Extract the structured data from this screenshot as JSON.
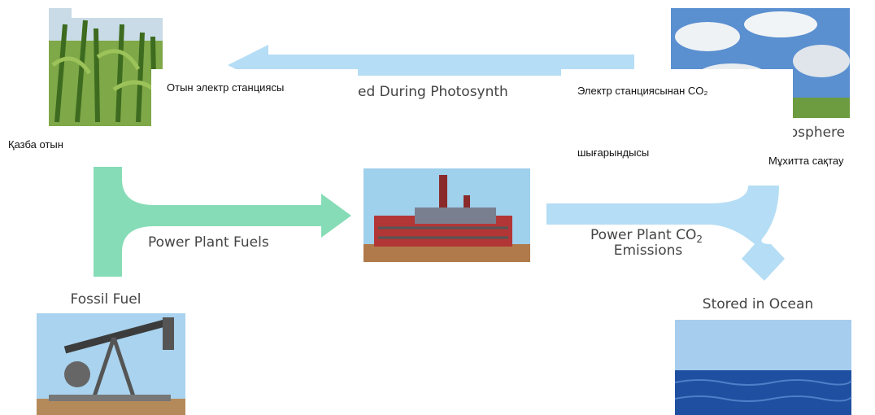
{
  "translations": {
    "power_plant_fuel": "Отын электр станциясы",
    "power_plant_emissions": "Электр станциясынан CO₂",
    "emissions_line2": "шығарындысы",
    "fossil_fuel": "Қазба отын",
    "ocean_storage": "Мұхитта сақтау"
  },
  "diagram": {
    "photosynthesis_label": "ed During Photosynth",
    "atmosphere_label": "nosphere",
    "fuels_label": "Power Plant Fuels",
    "emissions_label": {
      "prefix": "Power Plant CO",
      "subscript": "2",
      "line2": "Emissions"
    },
    "fossil_fuel_label": "Fossil Fuel",
    "ocean_label": "Stored in Ocean"
  }
}
